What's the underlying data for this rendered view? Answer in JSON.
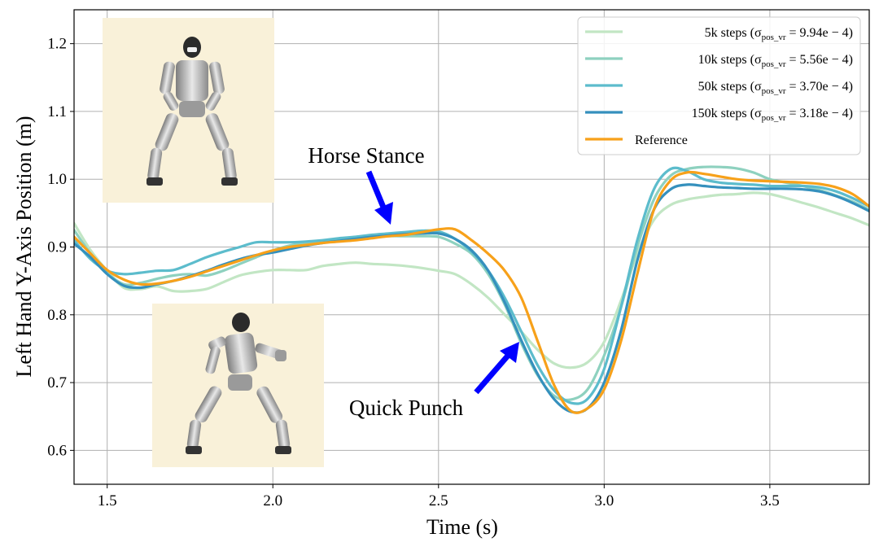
{
  "chart_data": {
    "type": "line",
    "xlabel": "Time (s)",
    "ylabel": "Left Hand Y-Axis Position (m)",
    "xlim": [
      1.4,
      3.8
    ],
    "ylim": [
      0.55,
      1.25
    ],
    "xticks": [
      1.5,
      2.0,
      2.5,
      3.0,
      3.5
    ],
    "yticks": [
      0.6,
      0.7,
      0.8,
      0.9,
      1.0,
      1.1,
      1.2
    ],
    "grid": true,
    "legend_position": "top-right",
    "series": [
      {
        "name": "5k steps",
        "sigma": "9.94e-4",
        "color": "#c2e6c4",
        "x": [
          1.4,
          1.45,
          1.5,
          1.55,
          1.6,
          1.65,
          1.7,
          1.75,
          1.8,
          1.85,
          1.9,
          1.95,
          2.0,
          2.05,
          2.1,
          2.15,
          2.2,
          2.25,
          2.3,
          2.35,
          2.4,
          2.45,
          2.5,
          2.55,
          2.6,
          2.65,
          2.7,
          2.75,
          2.8,
          2.85,
          2.9,
          2.95,
          3.0,
          3.05,
          3.1,
          3.15,
          3.2,
          3.25,
          3.3,
          3.35,
          3.4,
          3.45,
          3.5,
          3.55,
          3.6,
          3.65,
          3.7,
          3.75,
          3.8
        ],
        "y": [
          0.935,
          0.895,
          0.865,
          0.84,
          0.838,
          0.842,
          0.835,
          0.835,
          0.838,
          0.848,
          0.858,
          0.863,
          0.866,
          0.866,
          0.866,
          0.872,
          0.875,
          0.877,
          0.875,
          0.874,
          0.872,
          0.869,
          0.865,
          0.86,
          0.845,
          0.825,
          0.8,
          0.775,
          0.748,
          0.728,
          0.722,
          0.73,
          0.76,
          0.82,
          0.89,
          0.94,
          0.962,
          0.97,
          0.974,
          0.977,
          0.978,
          0.98,
          0.978,
          0.972,
          0.965,
          0.958,
          0.95,
          0.942,
          0.932
        ]
      },
      {
        "name": "10k steps",
        "sigma": "5.56e-4",
        "color": "#8ed1bf",
        "x": [
          1.4,
          1.45,
          1.5,
          1.55,
          1.6,
          1.65,
          1.7,
          1.75,
          1.8,
          1.85,
          1.9,
          1.95,
          2.0,
          2.05,
          2.1,
          2.15,
          2.2,
          2.25,
          2.3,
          2.35,
          2.4,
          2.45,
          2.5,
          2.55,
          2.6,
          2.65,
          2.7,
          2.75,
          2.8,
          2.85,
          2.9,
          2.95,
          3.0,
          3.05,
          3.1,
          3.15,
          3.2,
          3.25,
          3.3,
          3.35,
          3.4,
          3.45,
          3.5,
          3.55,
          3.6,
          3.65,
          3.7,
          3.75,
          3.8
        ],
        "y": [
          0.925,
          0.89,
          0.862,
          0.845,
          0.847,
          0.853,
          0.858,
          0.86,
          0.858,
          0.865,
          0.875,
          0.885,
          0.895,
          0.902,
          0.906,
          0.908,
          0.91,
          0.912,
          0.914,
          0.916,
          0.916,
          0.916,
          0.915,
          0.905,
          0.89,
          0.86,
          0.815,
          0.758,
          0.71,
          0.68,
          0.675,
          0.69,
          0.74,
          0.81,
          0.9,
          0.97,
          1.005,
          1.015,
          1.018,
          1.018,
          1.016,
          1.01,
          1.0,
          0.995,
          0.99,
          0.984,
          0.976,
          0.967,
          0.955
        ]
      },
      {
        "name": "50k steps",
        "sigma": "3.70e-4",
        "color": "#5cbccc",
        "x": [
          1.4,
          1.45,
          1.5,
          1.55,
          1.6,
          1.65,
          1.7,
          1.75,
          1.8,
          1.85,
          1.9,
          1.95,
          2.0,
          2.05,
          2.1,
          2.15,
          2.2,
          2.25,
          2.3,
          2.35,
          2.4,
          2.45,
          2.5,
          2.55,
          2.6,
          2.65,
          2.7,
          2.75,
          2.8,
          2.85,
          2.9,
          2.95,
          3.0,
          3.05,
          3.1,
          3.15,
          3.2,
          3.25,
          3.3,
          3.35,
          3.4,
          3.45,
          3.5,
          3.55,
          3.6,
          3.65,
          3.7,
          3.75,
          3.8
        ],
        "y": [
          0.91,
          0.882,
          0.865,
          0.86,
          0.862,
          0.865,
          0.866,
          0.875,
          0.885,
          0.893,
          0.9,
          0.907,
          0.907,
          0.907,
          0.908,
          0.91,
          0.913,
          0.915,
          0.918,
          0.92,
          0.922,
          0.924,
          0.923,
          0.912,
          0.893,
          0.865,
          0.825,
          0.775,
          0.725,
          0.688,
          0.67,
          0.676,
          0.72,
          0.81,
          0.91,
          0.985,
          1.015,
          1.012,
          1.0,
          0.995,
          0.993,
          0.992,
          0.99,
          0.99,
          0.99,
          0.988,
          0.982,
          0.972,
          0.96
        ]
      },
      {
        "name": "150k steps",
        "sigma": "3.18e-4",
        "color": "#3590bd",
        "x": [
          1.4,
          1.45,
          1.5,
          1.55,
          1.6,
          1.65,
          1.7,
          1.75,
          1.8,
          1.85,
          1.9,
          1.95,
          2.0,
          2.05,
          2.1,
          2.15,
          2.2,
          2.25,
          2.3,
          2.35,
          2.4,
          2.45,
          2.5,
          2.55,
          2.6,
          2.65,
          2.7,
          2.75,
          2.8,
          2.85,
          2.9,
          2.95,
          3.0,
          3.05,
          3.1,
          3.15,
          3.2,
          3.25,
          3.3,
          3.35,
          3.4,
          3.45,
          3.5,
          3.55,
          3.6,
          3.65,
          3.7,
          3.75,
          3.8
        ],
        "y": [
          0.905,
          0.885,
          0.86,
          0.843,
          0.84,
          0.845,
          0.85,
          0.857,
          0.865,
          0.874,
          0.882,
          0.888,
          0.892,
          0.897,
          0.902,
          0.906,
          0.909,
          0.912,
          0.915,
          0.917,
          0.919,
          0.92,
          0.92,
          0.912,
          0.895,
          0.865,
          0.818,
          0.762,
          0.712,
          0.675,
          0.657,
          0.662,
          0.7,
          0.775,
          0.88,
          0.955,
          0.985,
          0.992,
          0.99,
          0.988,
          0.987,
          0.986,
          0.986,
          0.986,
          0.985,
          0.982,
          0.975,
          0.965,
          0.953
        ]
      },
      {
        "name": "Reference",
        "sigma": "",
        "color": "#f7a11a",
        "x": [
          1.4,
          1.45,
          1.5,
          1.55,
          1.6,
          1.65,
          1.7,
          1.75,
          1.8,
          1.85,
          1.9,
          1.95,
          2.0,
          2.05,
          2.1,
          2.15,
          2.2,
          2.25,
          2.3,
          2.35,
          2.4,
          2.45,
          2.5,
          2.55,
          2.6,
          2.65,
          2.7,
          2.75,
          2.8,
          2.85,
          2.9,
          2.95,
          3.0,
          3.05,
          3.1,
          3.15,
          3.2,
          3.25,
          3.3,
          3.35,
          3.4,
          3.45,
          3.5,
          3.55,
          3.6,
          3.65,
          3.7,
          3.75,
          3.8
        ],
        "y": [
          0.915,
          0.89,
          0.866,
          0.852,
          0.845,
          0.846,
          0.85,
          0.856,
          0.864,
          0.872,
          0.88,
          0.888,
          0.895,
          0.9,
          0.903,
          0.906,
          0.908,
          0.91,
          0.913,
          0.916,
          0.918,
          0.922,
          0.926,
          0.926,
          0.91,
          0.89,
          0.865,
          0.825,
          0.76,
          0.695,
          0.658,
          0.662,
          0.69,
          0.76,
          0.86,
          0.955,
          0.998,
          1.01,
          1.008,
          1.004,
          1.0,
          0.998,
          0.997,
          0.996,
          0.995,
          0.993,
          0.988,
          0.978,
          0.96
        ]
      }
    ],
    "annotations": [
      {
        "text": "Horse Stance",
        "color": "#0000ff"
      },
      {
        "text": "Quick Punch",
        "color": "#0000ff"
      }
    ]
  },
  "legend": {
    "sigma_symbol": "σ",
    "sigma_subscript": "pos_vr",
    "steps_suffix": "steps"
  },
  "insets": [
    {
      "icon": "humanoid-robot-horse-stance-image",
      "background": "#f9f1d9"
    },
    {
      "icon": "humanoid-robot-quick-punch-image",
      "background": "#f9f1d9"
    }
  ]
}
